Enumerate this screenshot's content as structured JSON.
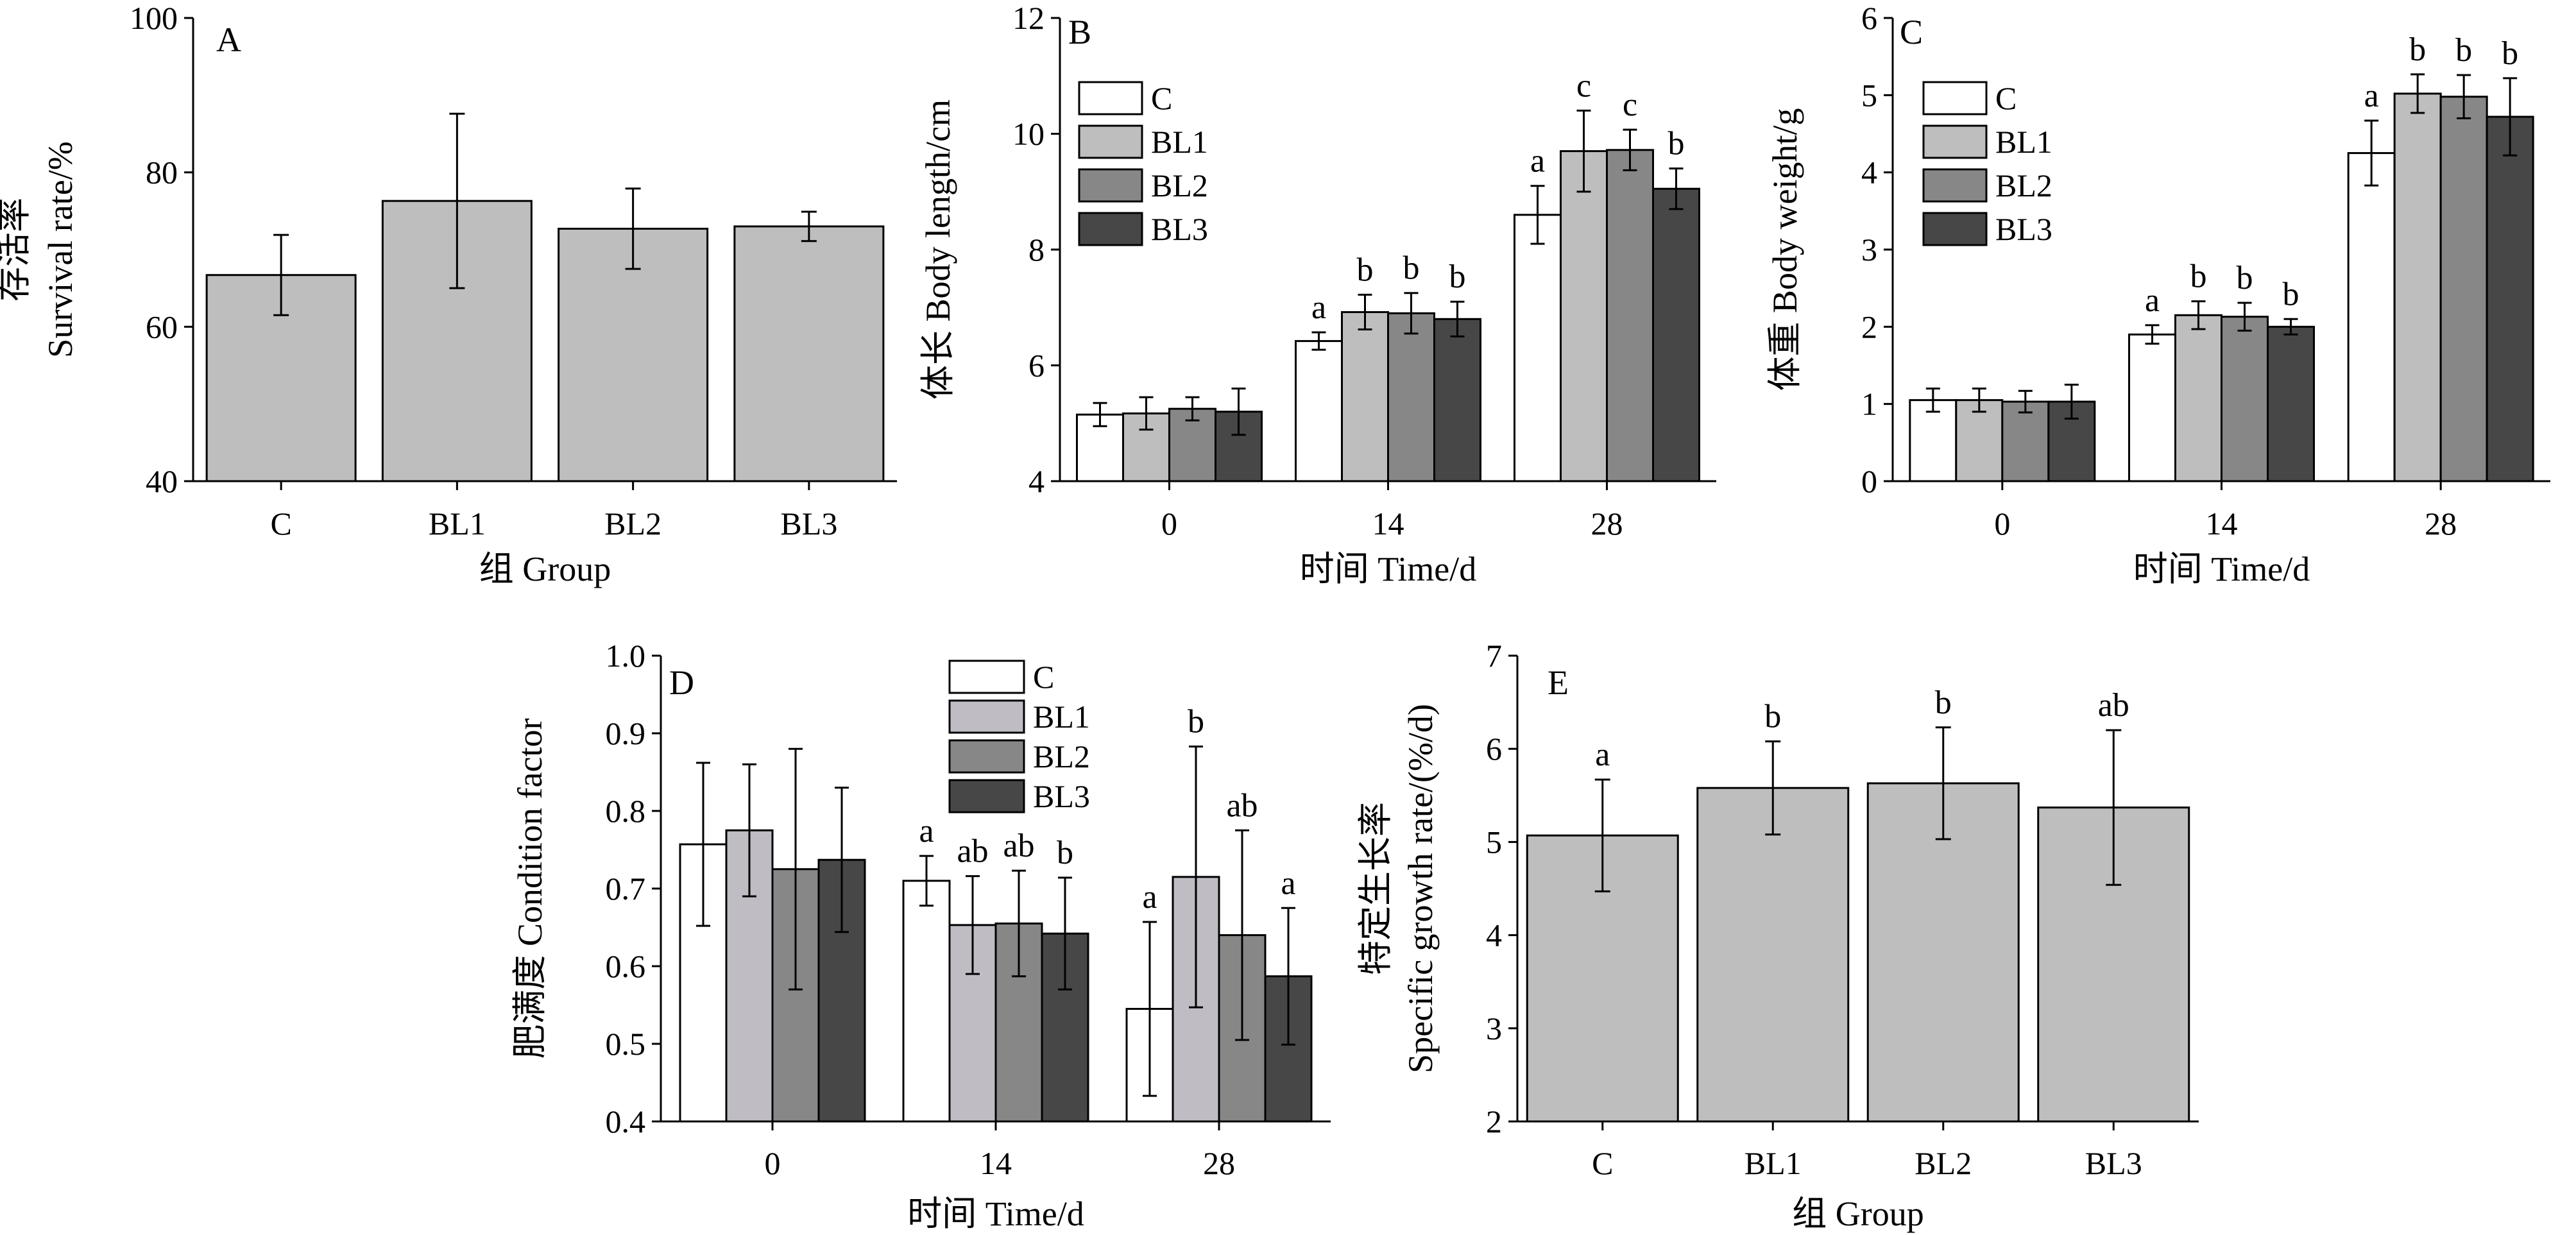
{
  "chart_data": [
    {
      "panel": "A",
      "type": "bar",
      "categories": [
        "C",
        "BL1",
        "BL2",
        "BL3"
      ],
      "values": [
        66.7,
        76.3,
        72.7,
        73.0
      ],
      "errors": [
        5.2,
        11.3,
        5.2,
        1.9
      ],
      "ylim": [
        40,
        100
      ],
      "yticks": [
        40,
        60,
        80,
        100
      ],
      "ylabel_zh": "存活率",
      "ylabel": "Survival rate/%",
      "xlabel": "组 Group",
      "colors": [
        "#bebebe"
      ],
      "grid": false
    },
    {
      "panel": "B",
      "type": "bar",
      "categories": [
        "0",
        "14",
        "28"
      ],
      "series": [
        {
          "name": "C",
          "values": [
            5.15,
            6.42,
            8.6
          ],
          "errors": [
            0.2,
            0.15,
            0.5
          ],
          "letters": [
            "",
            "a",
            "a"
          ]
        },
        {
          "name": "BL1",
          "values": [
            5.17,
            6.92,
            9.7
          ],
          "errors": [
            0.28,
            0.3,
            0.7
          ],
          "letters": [
            "",
            "b",
            "c"
          ]
        },
        {
          "name": "BL2",
          "values": [
            5.25,
            6.9,
            9.72
          ],
          "errors": [
            0.2,
            0.35,
            0.35
          ],
          "letters": [
            "",
            "b",
            "c"
          ]
        },
        {
          "name": "BL3",
          "values": [
            5.2,
            6.8,
            9.05
          ],
          "errors": [
            0.4,
            0.3,
            0.35
          ],
          "letters": [
            "",
            "b",
            "b"
          ]
        }
      ],
      "ylim": [
        4,
        12
      ],
      "yticks": [
        4,
        6,
        8,
        10,
        12
      ],
      "ylabel_zh": "体长",
      "ylabel": "Body length/cm",
      "xlabel": "时间 Time/d",
      "legend_position": "top-left",
      "colors": [
        "#ffffff",
        "#bebebe",
        "#878787",
        "#474747"
      ],
      "grid": false
    },
    {
      "panel": "C",
      "type": "bar",
      "categories": [
        "0",
        "14",
        "28"
      ],
      "series": [
        {
          "name": "C",
          "values": [
            1.05,
            1.9,
            4.25
          ],
          "errors": [
            0.15,
            0.12,
            0.42
          ],
          "letters": [
            "",
            "a",
            "a"
          ]
        },
        {
          "name": "BL1",
          "values": [
            1.05,
            2.15,
            5.02
          ],
          "errors": [
            0.15,
            0.18,
            0.25
          ],
          "letters": [
            "",
            "b",
            "b"
          ]
        },
        {
          "name": "BL2",
          "values": [
            1.03,
            2.13,
            4.98
          ],
          "errors": [
            0.14,
            0.18,
            0.28
          ],
          "letters": [
            "",
            "b",
            "b"
          ]
        },
        {
          "name": "BL3",
          "values": [
            1.03,
            2.0,
            4.72
          ],
          "errors": [
            0.22,
            0.1,
            0.5
          ],
          "letters": [
            "",
            "b",
            "b"
          ]
        }
      ],
      "ylim": [
        0,
        6
      ],
      "yticks": [
        0,
        1,
        2,
        3,
        4,
        5,
        6
      ],
      "ylabel_zh": "体重",
      "ylabel": "Body weight/g",
      "xlabel": "时间 Time/d",
      "legend_position": "top-left",
      "colors": [
        "#ffffff",
        "#bebebe",
        "#878787",
        "#474747"
      ],
      "grid": false
    },
    {
      "panel": "D",
      "type": "bar",
      "categories": [
        "0",
        "14",
        "28"
      ],
      "series": [
        {
          "name": "C",
          "values": [
            0.757,
            0.71,
            0.545
          ],
          "errors": [
            0.105,
            0.032,
            0.112
          ],
          "letters": [
            "",
            "a",
            "a"
          ]
        },
        {
          "name": "BL1",
          "values": [
            0.775,
            0.653,
            0.715
          ],
          "errors": [
            0.085,
            0.063,
            0.168
          ],
          "letters": [
            "",
            "ab",
            "b"
          ]
        },
        {
          "name": "BL2",
          "values": [
            0.725,
            0.655,
            0.64
          ],
          "errors": [
            0.155,
            0.068,
            0.135
          ],
          "letters": [
            "",
            "ab",
            "ab"
          ]
        },
        {
          "name": "BL3",
          "values": [
            0.737,
            0.642,
            0.587
          ],
          "errors": [
            0.093,
            0.072,
            0.088
          ],
          "letters": [
            "",
            "b",
            "a"
          ]
        }
      ],
      "ylim": [
        0.4,
        1.0
      ],
      "yticks": [
        0.4,
        0.5,
        0.6,
        0.7,
        0.8,
        0.9,
        1.0
      ],
      "ylabel_zh": "肥满度",
      "ylabel": "Condition factor",
      "xlabel": "时间 Time/d",
      "legend_position": "top-center",
      "colors": [
        "#ffffff",
        "#c0bcc4",
        "#878787",
        "#474747"
      ],
      "grid": false
    },
    {
      "panel": "E",
      "type": "bar",
      "categories": [
        "C",
        "BL1",
        "BL2",
        "BL3"
      ],
      "values": [
        5.07,
        5.58,
        5.63,
        5.37
      ],
      "errors": [
        0.6,
        0.5,
        0.6,
        0.83
      ],
      "letters": [
        "a",
        "b",
        "b",
        "ab"
      ],
      "ylim": [
        2,
        7
      ],
      "yticks": [
        2,
        3,
        4,
        5,
        6,
        7
      ],
      "ylabel_zh": "特定生长率",
      "ylabel": "Specific growth rate/(%/d)",
      "xlabel": "组 Group",
      "colors": [
        "#bebebe"
      ],
      "grid": false
    }
  ]
}
